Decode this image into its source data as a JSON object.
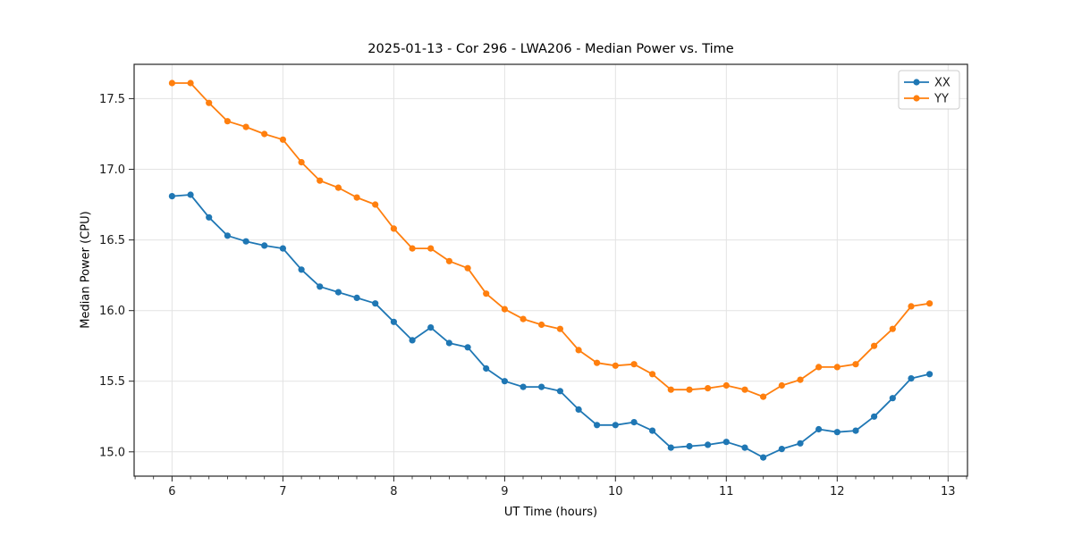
{
  "chart_data": {
    "type": "line",
    "title": "2025-01-13 - Cor 296 - LWA206 - Median Power vs. Time",
    "xlabel": "UT Time (hours)",
    "ylabel": "Median Power (CPU)",
    "x": [
      6.0,
      6.167,
      6.333,
      6.5,
      6.667,
      6.833,
      7.0,
      7.167,
      7.333,
      7.5,
      7.667,
      7.833,
      8.0,
      8.167,
      8.333,
      8.5,
      8.667,
      8.833,
      9.0,
      9.167,
      9.333,
      9.5,
      9.667,
      9.833,
      10.0,
      10.167,
      10.333,
      10.5,
      10.667,
      10.833,
      11.0,
      11.167,
      11.333,
      11.5,
      11.667,
      11.833,
      12.0,
      12.167,
      12.333,
      12.5,
      12.667,
      12.833
    ],
    "series": [
      {
        "name": "XX",
        "color": "#1f77b4",
        "values": [
          16.81,
          16.82,
          16.66,
          16.53,
          16.49,
          16.46,
          16.44,
          16.29,
          16.17,
          16.13,
          16.09,
          16.05,
          15.92,
          15.79,
          15.88,
          15.77,
          15.74,
          15.59,
          15.5,
          15.46,
          15.46,
          15.43,
          15.3,
          15.19,
          15.19,
          15.21,
          15.15,
          15.03,
          15.04,
          15.05,
          15.07,
          15.03,
          14.96,
          15.02,
          15.06,
          15.16,
          15.14,
          15.15,
          15.25,
          15.38,
          15.52,
          15.55
        ]
      },
      {
        "name": "YY",
        "color": "#ff7f0e",
        "values": [
          17.61,
          17.61,
          17.47,
          17.34,
          17.3,
          17.25,
          17.21,
          17.05,
          16.92,
          16.87,
          16.8,
          16.75,
          16.58,
          16.44,
          16.44,
          16.35,
          16.3,
          16.12,
          16.01,
          15.94,
          15.9,
          15.87,
          15.72,
          15.63,
          15.61,
          15.62,
          15.55,
          15.44,
          15.44,
          15.45,
          15.47,
          15.44,
          15.39,
          15.47,
          15.51,
          15.6,
          15.6,
          15.62,
          15.75,
          15.87,
          16.03,
          16.05
        ]
      }
    ],
    "xlim": [
      5.658,
      13.175
    ],
    "ylim": [
      14.828,
      17.743
    ],
    "x_ticks": [
      6,
      7,
      8,
      9,
      10,
      11,
      12,
      13
    ],
    "x_tick_labels": [
      "6",
      "7",
      "8",
      "9",
      "10",
      "11",
      "12",
      "13"
    ],
    "y_ticks": [
      15.0,
      15.5,
      16.0,
      16.5,
      17.0,
      17.5
    ],
    "y_tick_labels": [
      "15.0",
      "15.5",
      "16.0",
      "16.5",
      "17.0",
      "17.5"
    ],
    "x_minor_step": 0.1667,
    "grid": true,
    "legend_position": "upper right",
    "marker": "circle",
    "colors": {
      "background": "#ffffff",
      "grid": "#e3e3e3",
      "spine": "#262626",
      "text": "#1a1a1a",
      "legend_border": "#cccccc"
    }
  }
}
